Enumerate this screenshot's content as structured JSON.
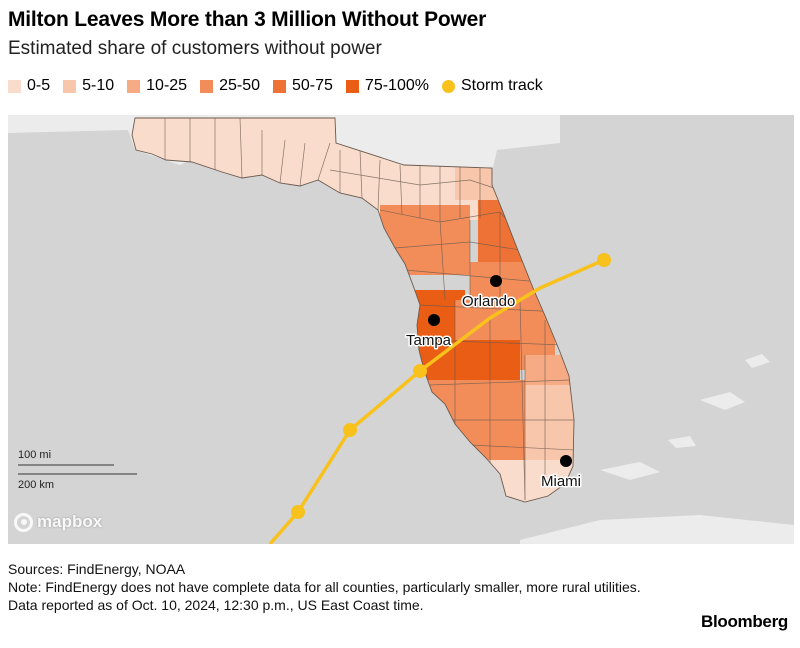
{
  "header": {
    "title": "Milton Leaves More than 3 Million Without Power",
    "subtitle": "Estimated share of customers without power"
  },
  "legend": {
    "items": [
      {
        "label": "0-5",
        "color": "#f9dccb"
      },
      {
        "label": "5-10",
        "color": "#f8c6ab"
      },
      {
        "label": "10-25",
        "color": "#f6ab84"
      },
      {
        "label": "25-50",
        "color": "#f28d5a"
      },
      {
        "label": "50-75",
        "color": "#ee7236"
      },
      {
        "label": "75-100%",
        "color": "#e95d15"
      }
    ],
    "storm_track": {
      "label": "Storm track",
      "color": "#f8c11b"
    }
  },
  "map": {
    "cities": [
      {
        "name": "Orlando"
      },
      {
        "name": "Tampa"
      },
      {
        "name": "Miami"
      }
    ],
    "scale": {
      "miles_label": "100 mi",
      "km_label": "200 km"
    },
    "attribution": "mapbox",
    "colors": {
      "water": "#d4d4d4",
      "land": "#eeeeee",
      "county_border": "#6b5a4e"
    }
  },
  "footer": {
    "sources": "Sources: FindEnergy, NOAA",
    "note": "Note: FindEnergy does not have complete data for all counties, particularly smaller, more rural utilities. Data reported as of Oct. 10, 2024, 12:30 p.m., US East Coast time.",
    "brand": "Bloomberg"
  }
}
